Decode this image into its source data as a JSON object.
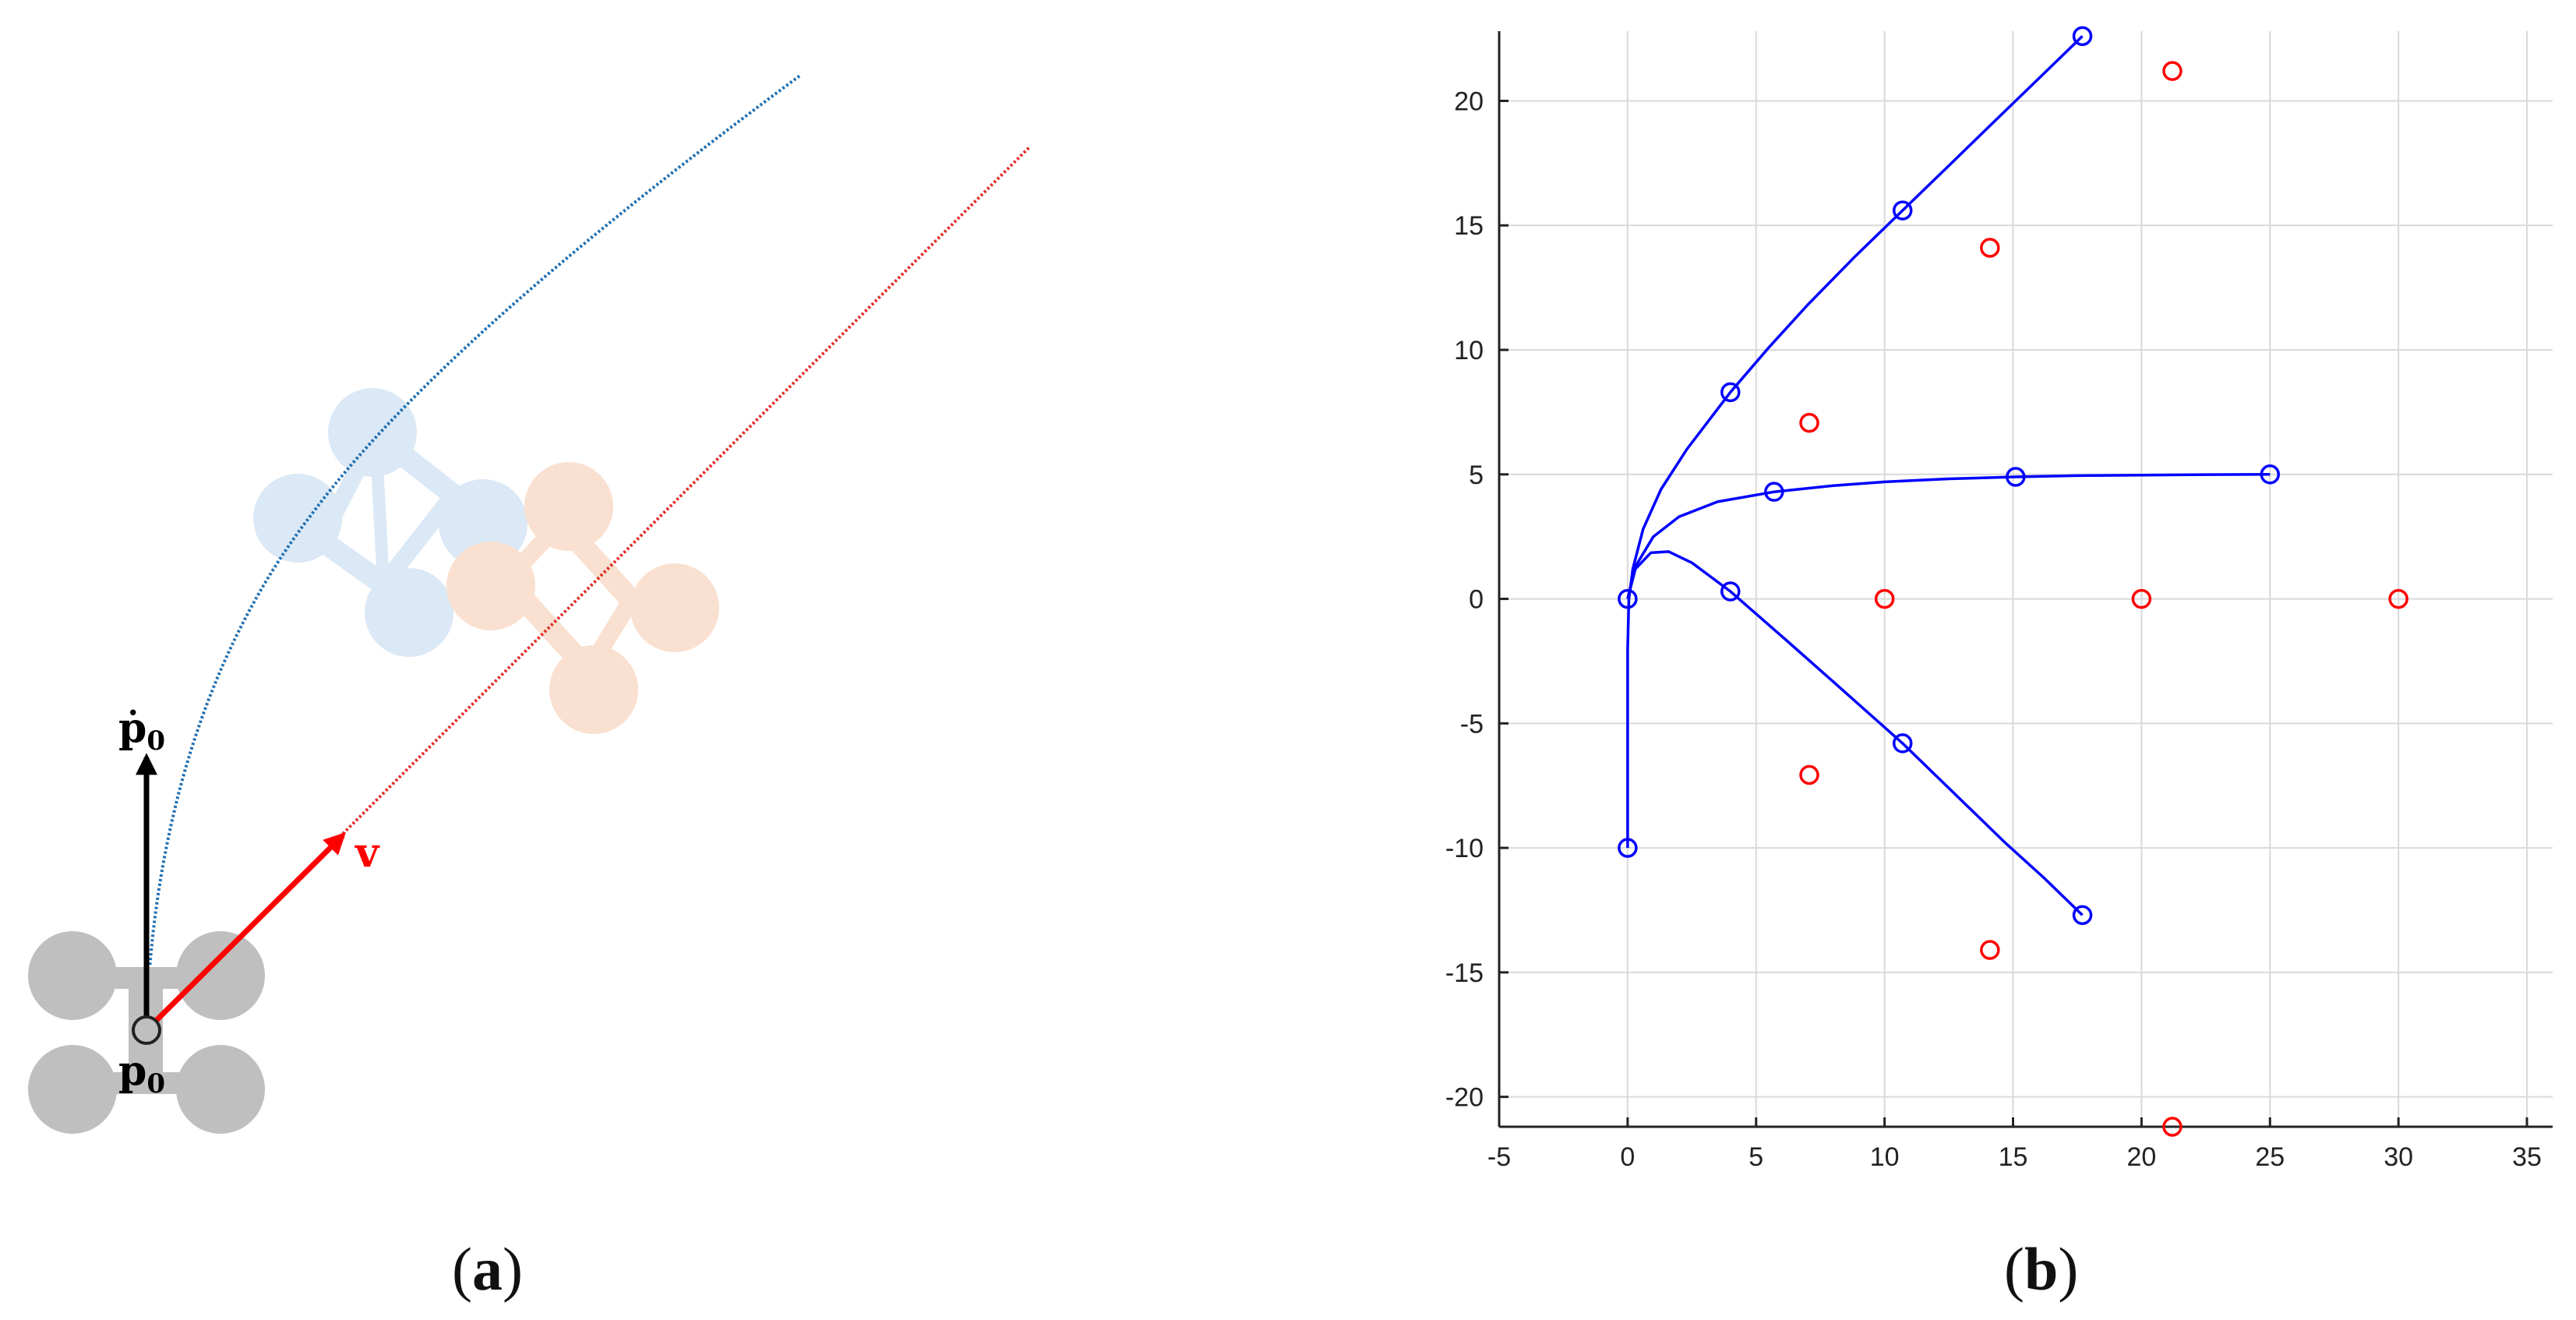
{
  "panel_a": {
    "label_open": "(",
    "label_letter": "a",
    "label_close": ")",
    "label_pdot": "ṗ",
    "label_p": "p",
    "label_sub": "0",
    "label_v": "v",
    "colors": {
      "drone_current": "#bfbfbf",
      "drone_blue": "#dbe8f5",
      "drone_orange": "#f9e0d0",
      "path_blue": "#1f6fb2",
      "path_red": "#e0302a",
      "velocity_arrow": "#ff0000",
      "pdot_arrow": "#000000"
    }
  },
  "panel_b": {
    "label_open": "(",
    "label_letter": "b",
    "label_close": ")"
  },
  "chart_data": {
    "type": "line",
    "xlim": [
      -5,
      36
    ],
    "ylim": [
      -21.2,
      22.8
    ],
    "xticks": [
      -5,
      0,
      5,
      10,
      15,
      20,
      25,
      30,
      35
    ],
    "yticks": [
      -20,
      -15,
      -10,
      -5,
      0,
      5,
      10,
      15,
      20
    ],
    "grid": true,
    "series": [
      {
        "color": "#0000ff",
        "curve": [
          [
            0,
            -10
          ],
          [
            0,
            -6
          ],
          [
            0,
            -2
          ],
          [
            0.05,
            0
          ],
          [
            0.2,
            1.2
          ],
          [
            0.6,
            2.8
          ],
          [
            1.3,
            4.4
          ],
          [
            2.3,
            6
          ],
          [
            4,
            8.3
          ],
          [
            5.5,
            10.1
          ],
          [
            7,
            11.8
          ],
          [
            8.8,
            13.7
          ],
          [
            10.7,
            15.6
          ],
          [
            12.5,
            17.4
          ],
          [
            14.3,
            19.2
          ],
          [
            16,
            20.9
          ],
          [
            17.7,
            22.6
          ]
        ],
        "markers": [
          [
            0,
            -10
          ],
          [
            0,
            0
          ],
          [
            4,
            8.3
          ],
          [
            10.7,
            15.6
          ],
          [
            17.7,
            22.6
          ]
        ]
      },
      {
        "color": "#0000ff",
        "curve": [
          [
            0,
            0
          ],
          [
            0.3,
            1.3
          ],
          [
            1,
            2.5
          ],
          [
            2,
            3.3
          ],
          [
            3.5,
            3.9
          ],
          [
            5.7,
            4.3
          ],
          [
            8,
            4.55
          ],
          [
            10,
            4.7
          ],
          [
            12.5,
            4.82
          ],
          [
            15.1,
            4.9
          ],
          [
            17.5,
            4.95
          ],
          [
            20,
            4.97
          ],
          [
            22.5,
            4.99
          ],
          [
            25,
            5
          ]
        ],
        "markers": [
          [
            5.7,
            4.3
          ],
          [
            15.1,
            4.9
          ],
          [
            25,
            5
          ]
        ]
      },
      {
        "color": "#0000ff",
        "curve": [
          [
            0,
            0
          ],
          [
            0.3,
            1.2
          ],
          [
            0.9,
            1.85
          ],
          [
            1.6,
            1.9
          ],
          [
            2.5,
            1.45
          ],
          [
            4,
            0.3
          ],
          [
            6,
            -1.5
          ],
          [
            8.3,
            -3.6
          ],
          [
            10.7,
            -5.8
          ],
          [
            12.9,
            -8
          ],
          [
            14.7,
            -9.8
          ],
          [
            16.2,
            -11.2
          ],
          [
            17.7,
            -12.7
          ]
        ],
        "markers": [
          [
            4,
            0.3
          ],
          [
            10.7,
            -5.8
          ],
          [
            17.7,
            -12.7
          ]
        ]
      },
      {
        "color": "#ff0000",
        "markers": [
          [
            7.07,
            7.07
          ],
          [
            14.1,
            14.1
          ],
          [
            21.2,
            21.2
          ],
          [
            10,
            0
          ],
          [
            20,
            0
          ],
          [
            30,
            0
          ],
          [
            7.07,
            -7.07
          ],
          [
            14.1,
            -14.1
          ],
          [
            21.2,
            -21.2
          ]
        ]
      }
    ]
  }
}
